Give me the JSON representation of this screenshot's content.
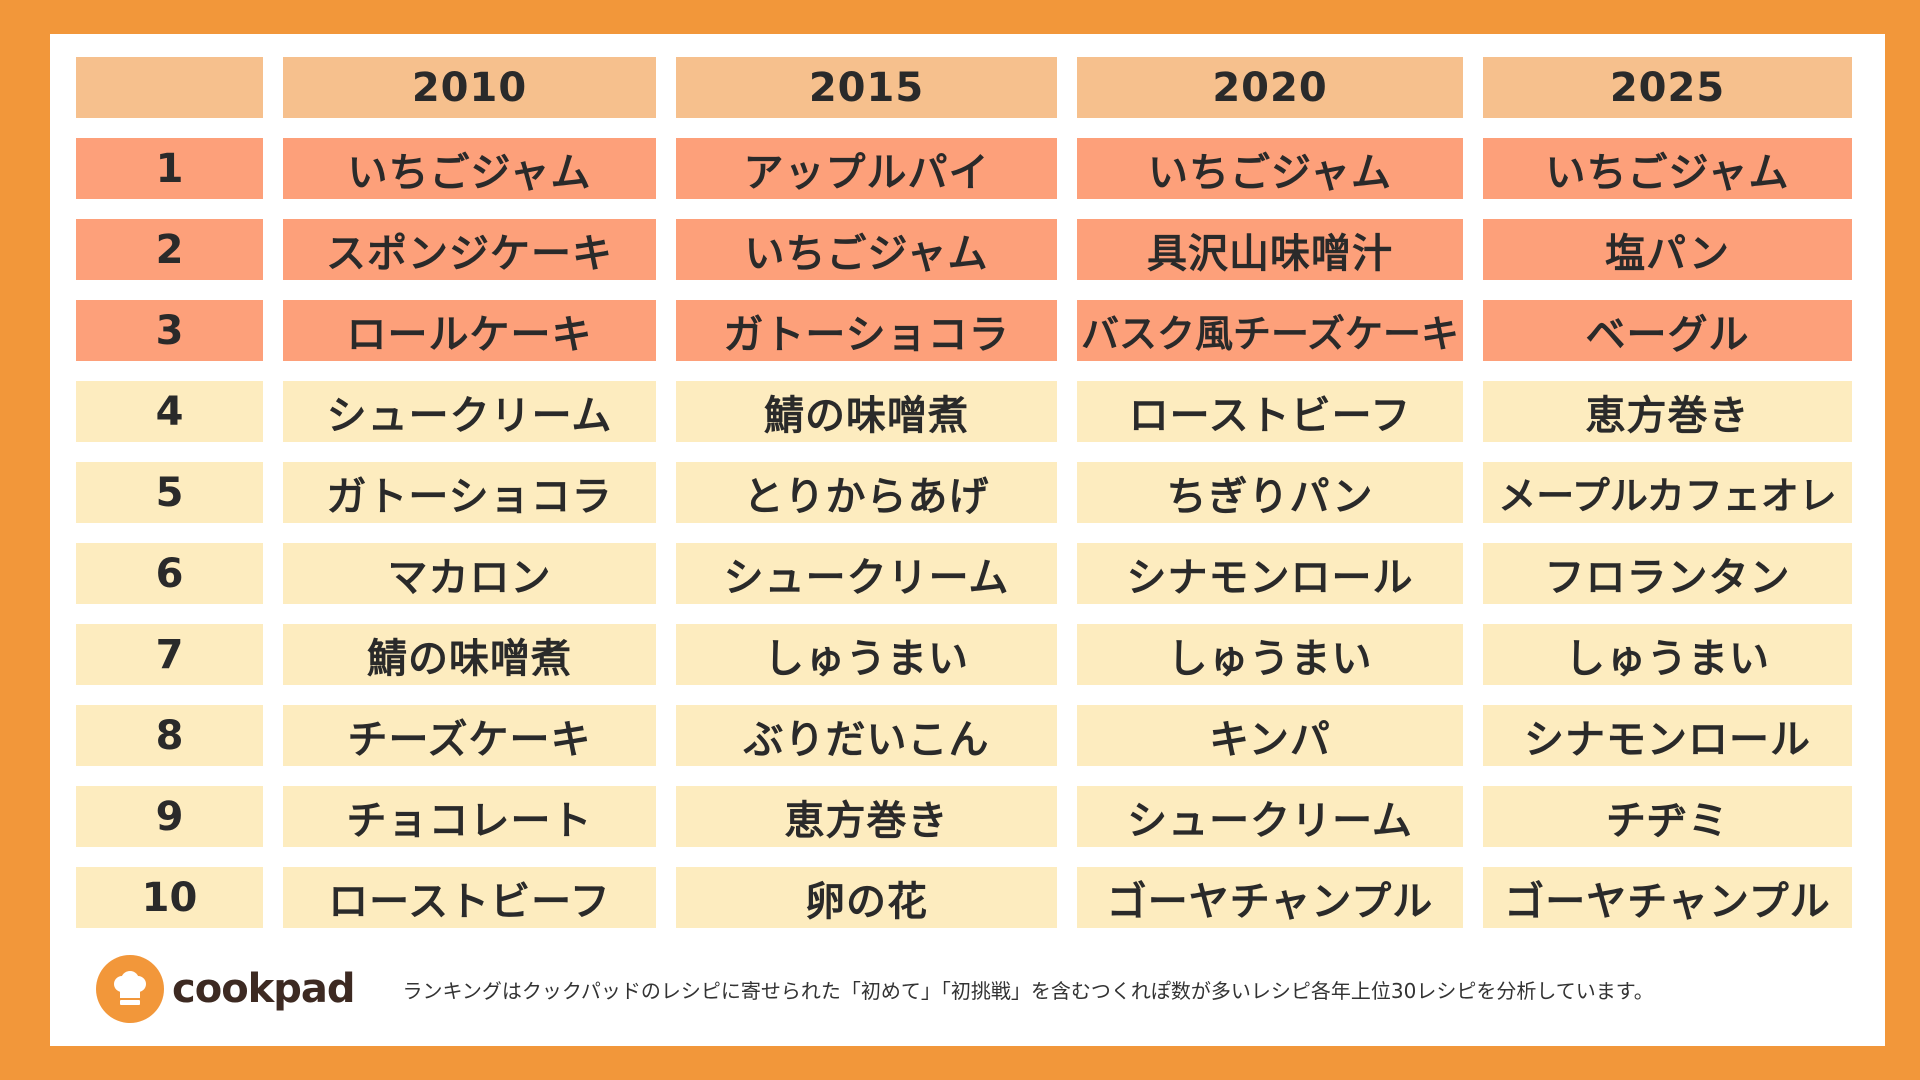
{
  "table": {
    "columns": [
      "",
      "2010",
      "2015",
      "2020",
      "2025"
    ],
    "rows": [
      {
        "rank": "1",
        "cells": [
          "いちごジャム",
          "アップルパイ",
          "いちごジャム",
          "いちごジャム"
        ]
      },
      {
        "rank": "2",
        "cells": [
          "スポンジケーキ",
          "いちごジャム",
          "具沢山味噌汁",
          "塩パン"
        ]
      },
      {
        "rank": "3",
        "cells": [
          "ロールケーキ",
          "ガトーショコラ",
          "バスク風チーズケーキ",
          "ベーグル"
        ]
      },
      {
        "rank": "4",
        "cells": [
          "シュークリーム",
          "鯖の味噌煮",
          "ローストビーフ",
          "恵方巻き"
        ]
      },
      {
        "rank": "5",
        "cells": [
          "ガトーショコラ",
          "とりからあげ",
          "ちぎりパン",
          "メープルカフェオレ"
        ]
      },
      {
        "rank": "6",
        "cells": [
          "マカロン",
          "シュークリーム",
          "シナモンロール",
          "フロランタン"
        ]
      },
      {
        "rank": "7",
        "cells": [
          "鯖の味噌煮",
          "しゅうまい",
          "しゅうまい",
          "しゅうまい"
        ]
      },
      {
        "rank": "8",
        "cells": [
          "チーズケーキ",
          "ぶりだいこん",
          "キンパ",
          "シナモンロール"
        ]
      },
      {
        "rank": "9",
        "cells": [
          "チョコレート",
          "恵方巻き",
          "シュークリーム",
          "チヂミ"
        ]
      },
      {
        "rank": "10",
        "cells": [
          "ローストビーフ",
          "卵の花",
          "ゴーヤチャンプル",
          "ゴーヤチャンプル"
        ]
      }
    ]
  },
  "footer": {
    "logo_text": "cookpad",
    "logo_icon": "chef-hat-icon",
    "note": "ランキングはクックパッドのレシピに寄せられた「初めて」「初挑戦」を含むつくれぽ数が多いレシピ各年上位30レシピを分析しています。"
  },
  "colors": {
    "frame": "#f2973a",
    "header": "#f6c08d",
    "top3": "#fda07a",
    "rest": "#fdecbf"
  }
}
